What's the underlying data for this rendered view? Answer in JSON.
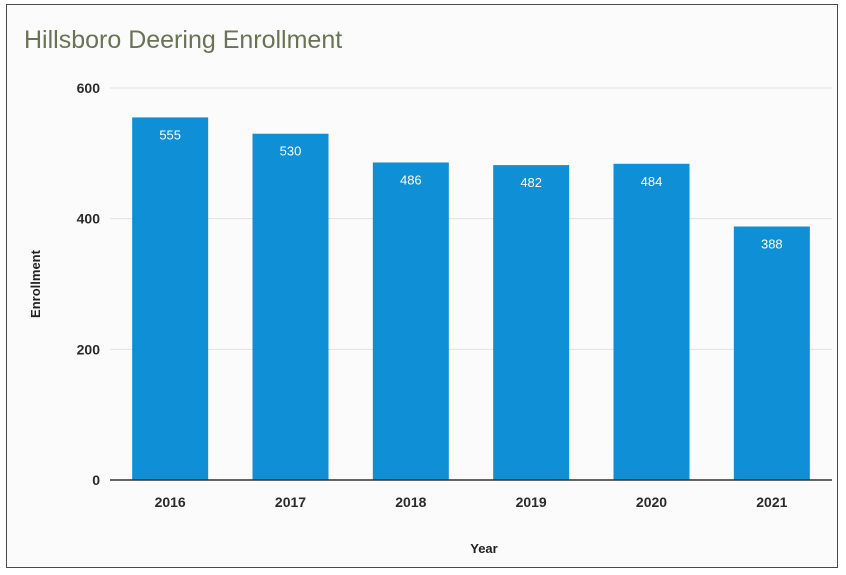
{
  "chart_data": {
    "type": "bar",
    "title": "Hillsboro Deering Enrollment",
    "xlabel": "Year",
    "ylabel": "Enrollment",
    "categories": [
      "2016",
      "2017",
      "2018",
      "2019",
      "2020",
      "2021"
    ],
    "values": [
      555,
      530,
      486,
      482,
      484,
      388
    ],
    "data_labels": [
      "555",
      "530",
      "486",
      "482",
      "484",
      "388"
    ],
    "ylim": [
      0,
      600
    ],
    "yticks": [
      0,
      200,
      400,
      600
    ],
    "ytick_labels": [
      "0",
      "200",
      "400",
      "600"
    ],
    "grid": true,
    "legend": "none",
    "bar_color": "#0f8fd6"
  }
}
